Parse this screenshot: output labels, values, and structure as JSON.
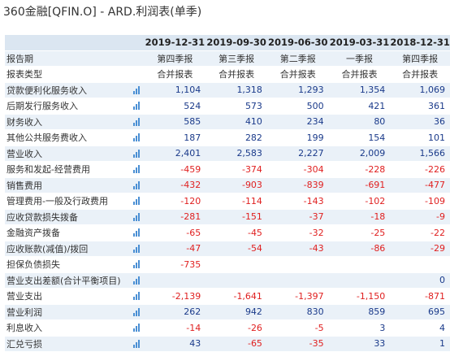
{
  "page_title": "360金融[QFIN.O] - ARD.利润表(单季)",
  "columns": [
    "2019-12-31",
    "2019-09-30",
    "2019-06-30",
    "2019-03-31",
    "2018-12-31"
  ],
  "meta_rows": [
    {
      "label": "报告期",
      "values": [
        "第四季报",
        "第三季报",
        "第二季报",
        "一季报",
        "第四季报"
      ]
    },
    {
      "label": "报表类型",
      "values": [
        "合并报表",
        "合并报表",
        "合并报表",
        "合并报表",
        "合并报表"
      ]
    }
  ],
  "rows": [
    {
      "label": "贷款便利化服务收入",
      "values": [
        "1,104",
        "1,318",
        "1,293",
        "1,354",
        "1,069"
      ]
    },
    {
      "label": "后期发行服务收入",
      "values": [
        "524",
        "573",
        "500",
        "421",
        "361"
      ]
    },
    {
      "label": "财务收入",
      "values": [
        "585",
        "410",
        "234",
        "80",
        "36"
      ]
    },
    {
      "label": "其他公共服务费收入",
      "values": [
        "187",
        "282",
        "199",
        "154",
        "101"
      ]
    },
    {
      "label": "营业收入",
      "values": [
        "2,401",
        "2,583",
        "2,227",
        "2,009",
        "1,566"
      ]
    },
    {
      "label": "服务和发起-经营费用",
      "values": [
        "-459",
        "-374",
        "-304",
        "-228",
        "-226"
      ]
    },
    {
      "label": "销售费用",
      "values": [
        "-432",
        "-903",
        "-839",
        "-691",
        "-477"
      ]
    },
    {
      "label": "管理费用-一般及行政费用",
      "values": [
        "-120",
        "-114",
        "-143",
        "-102",
        "-109"
      ]
    },
    {
      "label": "应收贷款损失拨备",
      "values": [
        "-281",
        "-151",
        "-37",
        "-18",
        "-9"
      ]
    },
    {
      "label": "金融资产拨备",
      "values": [
        "-65",
        "-45",
        "-32",
        "-25",
        "-22"
      ]
    },
    {
      "label": "应收账款(减值)/拨回",
      "values": [
        "-47",
        "-54",
        "-43",
        "-86",
        "-29"
      ]
    },
    {
      "label": "担保负债损失",
      "values": [
        "-735",
        "",
        "",
        "",
        ""
      ]
    },
    {
      "label": "营业支出差额(合计平衡项目)",
      "values": [
        "",
        "",
        "",
        "",
        "0"
      ]
    },
    {
      "label": "营业支出",
      "values": [
        "-2,139",
        "-1,641",
        "-1,397",
        "-1,150",
        "-871"
      ]
    },
    {
      "label": "营业利润",
      "values": [
        "262",
        "942",
        "830",
        "859",
        "695"
      ]
    },
    {
      "label": "利息收入",
      "values": [
        "-14",
        "-26",
        "-5",
        "3",
        "4"
      ]
    },
    {
      "label": "汇兑亏损",
      "values": [
        "43",
        "-65",
        "-35",
        "33",
        "1"
      ]
    }
  ],
  "colors": {
    "header_bg": "#dbe6f1",
    "stripe_bg": "#eaf1f8",
    "negative": "#e02020",
    "positive": "#1a3a8a",
    "icon": "#4a8fd4"
  },
  "icon": "bar-chart-icon"
}
